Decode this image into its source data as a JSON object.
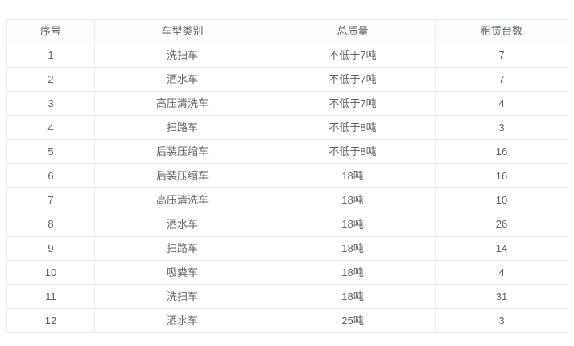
{
  "table": {
    "name": "vehicle-rental-table",
    "columns": [
      {
        "key": "index",
        "label": "序号"
      },
      {
        "key": "type",
        "label": "车型类别"
      },
      {
        "key": "mass",
        "label": "总质量"
      },
      {
        "key": "quantity",
        "label": "租赁台数"
      }
    ],
    "rows": [
      {
        "index": "1",
        "type": "洗扫车",
        "mass": "不低于7吨",
        "quantity": "7"
      },
      {
        "index": "2",
        "type": "洒水车",
        "mass": "不低于7吨",
        "quantity": "7"
      },
      {
        "index": "3",
        "type": "高压清洗车",
        "mass": "不低于7吨",
        "quantity": "4"
      },
      {
        "index": "4",
        "type": "扫路车",
        "mass": "不低于8吨",
        "quantity": "3"
      },
      {
        "index": "5",
        "type": "后装压缩车",
        "mass": "不低于8吨",
        "quantity": "16"
      },
      {
        "index": "6",
        "type": "后装压缩车",
        "mass": "18吨",
        "quantity": "16"
      },
      {
        "index": "7",
        "type": "高压清洗车",
        "mass": "18吨",
        "quantity": "10"
      },
      {
        "index": "8",
        "type": "洒水车",
        "mass": "18吨",
        "quantity": "26"
      },
      {
        "index": "9",
        "type": "扫路车",
        "mass": "18吨",
        "quantity": "14"
      },
      {
        "index": "10",
        "type": "吸粪车",
        "mass": "18吨",
        "quantity": "4"
      },
      {
        "index": "11",
        "type": "洗扫车",
        "mass": "18吨",
        "quantity": "31"
      },
      {
        "index": "12",
        "type": "洒水车",
        "mass": "25吨",
        "quantity": "3"
      }
    ]
  },
  "colors": {
    "border": "#ebeef0",
    "header_text": "#5b6066",
    "body_text": "#606266",
    "background": "#ffffff"
  }
}
